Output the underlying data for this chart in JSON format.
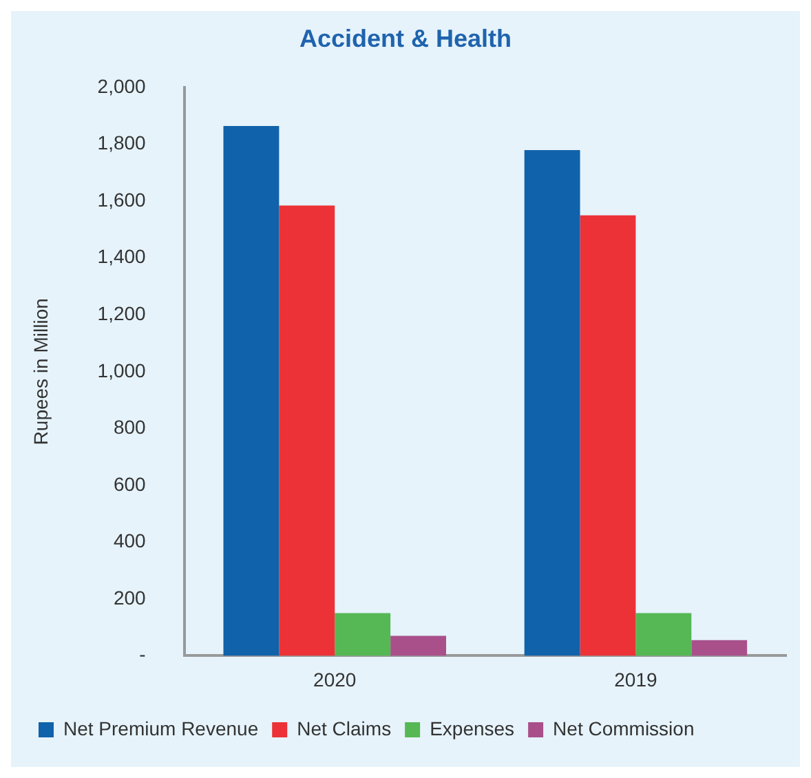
{
  "chart_data": {
    "type": "bar",
    "title": "Accident & Health",
    "ylabel": "Rupees in Million",
    "categories": [
      "2020",
      "2019"
    ],
    "series": [
      {
        "name": "Net Premium Revenue",
        "color": "#1062aa",
        "values": [
          1865,
          1780
        ]
      },
      {
        "name": "Net Claims",
        "color": "#ec3237",
        "values": [
          1585,
          1550
        ]
      },
      {
        "name": "Expenses",
        "color": "#55b854",
        "values": [
          150,
          150
        ]
      },
      {
        "name": "Net Commission",
        "color": "#a9508b",
        "values": [
          70,
          55
        ]
      }
    ],
    "ylim": [
      0,
      2000
    ],
    "yticks": [
      {
        "value": 0,
        "label": "-"
      },
      200,
      400,
      600,
      800,
      {
        "value": 1000,
        "label": "1,000"
      },
      {
        "value": 1200,
        "label": "1,200"
      },
      {
        "value": 1400,
        "label": "1,400"
      },
      {
        "value": 1600,
        "label": "1,600"
      },
      {
        "value": 1800,
        "label": "1,800"
      },
      {
        "value": 2000,
        "label": "2,000"
      }
    ],
    "grid": false,
    "legend": "bottom"
  }
}
